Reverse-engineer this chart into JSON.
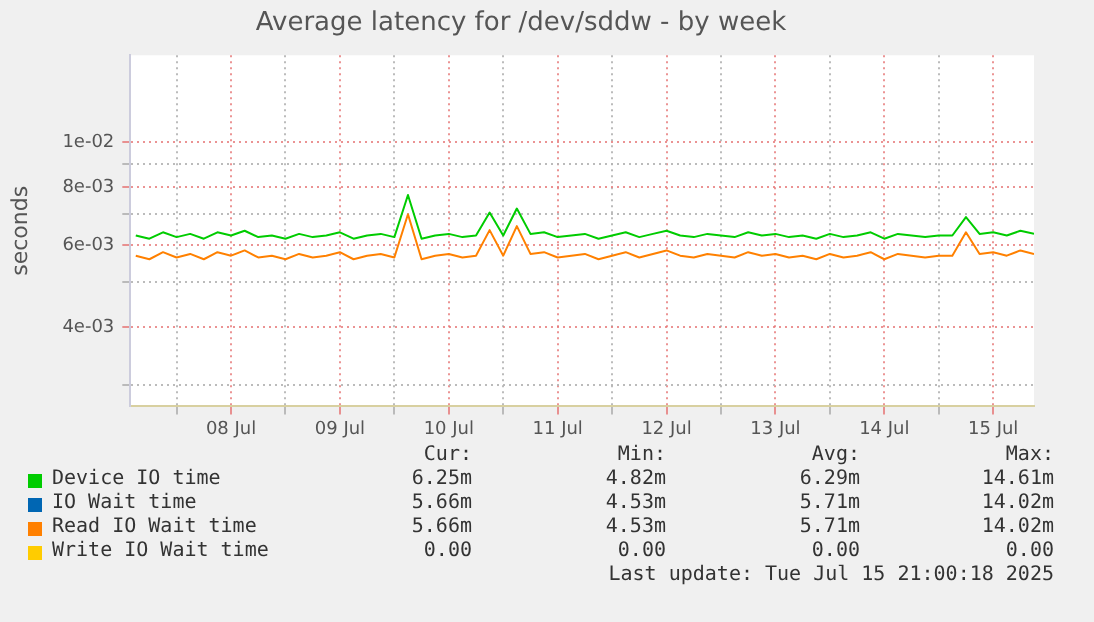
{
  "chart_data": {
    "type": "line",
    "title": "Average latency for /dev/sddw - by week",
    "ylabel": "seconds",
    "log": "y",
    "grid": true,
    "legend": "bottom",
    "marker": "none",
    "line_style": "solid",
    "xlim": [
      "2025-07-07T13:48",
      "2025-07-15T21:00"
    ],
    "xticks": [
      {
        "value": "2025-07-08T00:00",
        "label": null
      },
      {
        "value": "2025-07-08T12:00",
        "label": "08 Jul"
      },
      {
        "value": "2025-07-09T00:00",
        "label": null
      },
      {
        "value": "2025-07-09T12:00",
        "label": "09 Jul"
      },
      {
        "value": "2025-07-10T00:00",
        "label": null
      },
      {
        "value": "2025-07-10T12:00",
        "label": "10 Jul"
      },
      {
        "value": "2025-07-11T00:00",
        "label": null
      },
      {
        "value": "2025-07-11T12:00",
        "label": "11 Jul"
      },
      {
        "value": "2025-07-12T00:00",
        "label": null
      },
      {
        "value": "2025-07-12T12:00",
        "label": "12 Jul"
      },
      {
        "value": "2025-07-13T00:00",
        "label": null
      },
      {
        "value": "2025-07-13T12:00",
        "label": "13 Jul"
      },
      {
        "value": "2025-07-14T00:00",
        "label": null
      },
      {
        "value": "2025-07-14T12:00",
        "label": "14 Jul"
      },
      {
        "value": "2025-07-15T00:00",
        "label": null
      },
      {
        "value": "2025-07-15T12:00",
        "label": "15 Jul"
      }
    ],
    "ylim": [
      0.0027,
      0.0154
    ],
    "yticks": [
      {
        "value": 0.003,
        "label": null
      },
      {
        "value": 0.004,
        "label": "4e-03"
      },
      {
        "value": 0.005,
        "label": null
      },
      {
        "value": 0.006,
        "label": "6e-03"
      },
      {
        "value": 0.007,
        "label": null
      },
      {
        "value": 0.008,
        "label": "8e-03"
      },
      {
        "value": 0.009,
        "label": null
      },
      {
        "value": 0.01,
        "label": "1e-02"
      }
    ],
    "x": [
      "2025-07-07T15:00",
      "2025-07-07T18:00",
      "2025-07-07T21:00",
      "2025-07-08T00:00",
      "2025-07-08T03:00",
      "2025-07-08T06:00",
      "2025-07-08T09:00",
      "2025-07-08T12:00",
      "2025-07-08T15:00",
      "2025-07-08T18:00",
      "2025-07-08T21:00",
      "2025-07-09T00:00",
      "2025-07-09T03:00",
      "2025-07-09T06:00",
      "2025-07-09T09:00",
      "2025-07-09T12:00",
      "2025-07-09T15:00",
      "2025-07-09T18:00",
      "2025-07-09T21:00",
      "2025-07-10T00:00",
      "2025-07-10T03:00",
      "2025-07-10T06:00",
      "2025-07-10T09:00",
      "2025-07-10T12:00",
      "2025-07-10T15:00",
      "2025-07-10T18:00",
      "2025-07-10T21:00",
      "2025-07-11T00:00",
      "2025-07-11T03:00",
      "2025-07-11T06:00",
      "2025-07-11T09:00",
      "2025-07-11T12:00",
      "2025-07-11T15:00",
      "2025-07-11T18:00",
      "2025-07-11T21:00",
      "2025-07-12T00:00",
      "2025-07-12T03:00",
      "2025-07-12T06:00",
      "2025-07-12T09:00",
      "2025-07-12T12:00",
      "2025-07-12T15:00",
      "2025-07-12T18:00",
      "2025-07-12T21:00",
      "2025-07-13T00:00",
      "2025-07-13T03:00",
      "2025-07-13T06:00",
      "2025-07-13T09:00",
      "2025-07-13T12:00",
      "2025-07-13T15:00",
      "2025-07-13T18:00",
      "2025-07-13T21:00",
      "2025-07-14T00:00",
      "2025-07-14T03:00",
      "2025-07-14T06:00",
      "2025-07-14T09:00",
      "2025-07-14T12:00",
      "2025-07-14T15:00",
      "2025-07-14T18:00",
      "2025-07-14T21:00",
      "2025-07-15T00:00",
      "2025-07-15T03:00",
      "2025-07-15T06:00",
      "2025-07-15T09:00",
      "2025-07-15T12:00",
      "2025-07-15T15:00",
      "2025-07-15T18:00",
      "2025-07-15T21:00"
    ],
    "series": [
      {
        "name": "Device IO time",
        "color": "#00cc00",
        "values": [
          0.0063,
          0.0062,
          0.0064,
          0.00625,
          0.00635,
          0.0062,
          0.0064,
          0.0063,
          0.00645,
          0.00625,
          0.0063,
          0.0062,
          0.00635,
          0.00625,
          0.0063,
          0.0064,
          0.0062,
          0.0063,
          0.00635,
          0.00625,
          0.0077,
          0.0062,
          0.0063,
          0.00635,
          0.00625,
          0.0063,
          0.00706,
          0.0063,
          0.0072,
          0.00635,
          0.0064,
          0.00625,
          0.0063,
          0.00635,
          0.0062,
          0.0063,
          0.0064,
          0.00625,
          0.00635,
          0.00645,
          0.0063,
          0.00625,
          0.00635,
          0.0063,
          0.00625,
          0.0064,
          0.0063,
          0.00635,
          0.00625,
          0.0063,
          0.0062,
          0.00635,
          0.00625,
          0.0063,
          0.0064,
          0.0062,
          0.00635,
          0.0063,
          0.00625,
          0.0063,
          0.0063,
          0.0069,
          0.00635,
          0.0064,
          0.0063,
          0.00645,
          0.00635
        ]
      },
      {
        "name": "IO Wait time",
        "color": "#0066b3",
        "values": [
          null,
          null,
          null,
          null,
          null,
          null,
          null,
          null,
          null,
          null,
          null,
          null,
          null,
          null,
          null,
          null,
          null,
          null,
          null,
          null,
          null,
          null,
          null,
          null,
          null,
          null,
          null,
          null,
          null,
          null,
          null,
          null,
          null,
          null,
          null,
          null,
          null,
          null,
          null,
          null,
          null,
          null,
          null,
          null,
          null,
          null,
          null,
          null,
          null,
          null,
          null,
          null,
          null,
          null,
          null,
          null,
          null,
          null,
          null,
          null,
          null,
          null,
          null,
          null,
          null,
          null,
          null
        ]
      },
      {
        "name": "Read IO Wait time",
        "color": "#ff8000",
        "values": [
          0.0057,
          0.0056,
          0.0058,
          0.00565,
          0.00575,
          0.0056,
          0.0058,
          0.0057,
          0.00585,
          0.00565,
          0.0057,
          0.0056,
          0.00575,
          0.00565,
          0.0057,
          0.0058,
          0.0056,
          0.0057,
          0.00575,
          0.00565,
          0.007,
          0.0056,
          0.0057,
          0.00575,
          0.00565,
          0.0057,
          0.00647,
          0.0057,
          0.0066,
          0.00575,
          0.0058,
          0.00565,
          0.0057,
          0.00575,
          0.0056,
          0.0057,
          0.0058,
          0.00565,
          0.00575,
          0.00585,
          0.0057,
          0.00565,
          0.00575,
          0.0057,
          0.00565,
          0.0058,
          0.0057,
          0.00575,
          0.00565,
          0.0057,
          0.0056,
          0.00575,
          0.00565,
          0.0057,
          0.0058,
          0.0056,
          0.00575,
          0.0057,
          0.00565,
          0.0057,
          0.0057,
          0.0064,
          0.00575,
          0.0058,
          0.0057,
          0.00585,
          0.00575
        ]
      },
      {
        "name": "Write IO Wait time",
        "color": "#ffcc00",
        "values": [
          null,
          null,
          null,
          null,
          null,
          null,
          null,
          null,
          null,
          null,
          null,
          null,
          null,
          null,
          null,
          null,
          null,
          null,
          null,
          null,
          null,
          null,
          null,
          null,
          null,
          null,
          null,
          null,
          null,
          null,
          null,
          null,
          null,
          null,
          null,
          null,
          null,
          null,
          null,
          null,
          null,
          null,
          null,
          null,
          null,
          null,
          null,
          null,
          null,
          null,
          null,
          null,
          null,
          null,
          null,
          null,
          null,
          null,
          null,
          null,
          null,
          null,
          null,
          null,
          null,
          null,
          null
        ]
      }
    ],
    "annotations": [
      "Cur:",
      "Min:",
      "Avg:",
      "Max:",
      "6.25m",
      "4.82m",
      "6.29m",
      "14.61m",
      "5.66m",
      "4.53m",
      "5.71m",
      "14.02m",
      "5.66m",
      "4.53m",
      "5.71m",
      "14.02m",
      "0.00",
      "0.00",
      "0.00",
      "0.00",
      "Last update: Tue Jul 15 21:00:18 2025"
    ]
  }
}
